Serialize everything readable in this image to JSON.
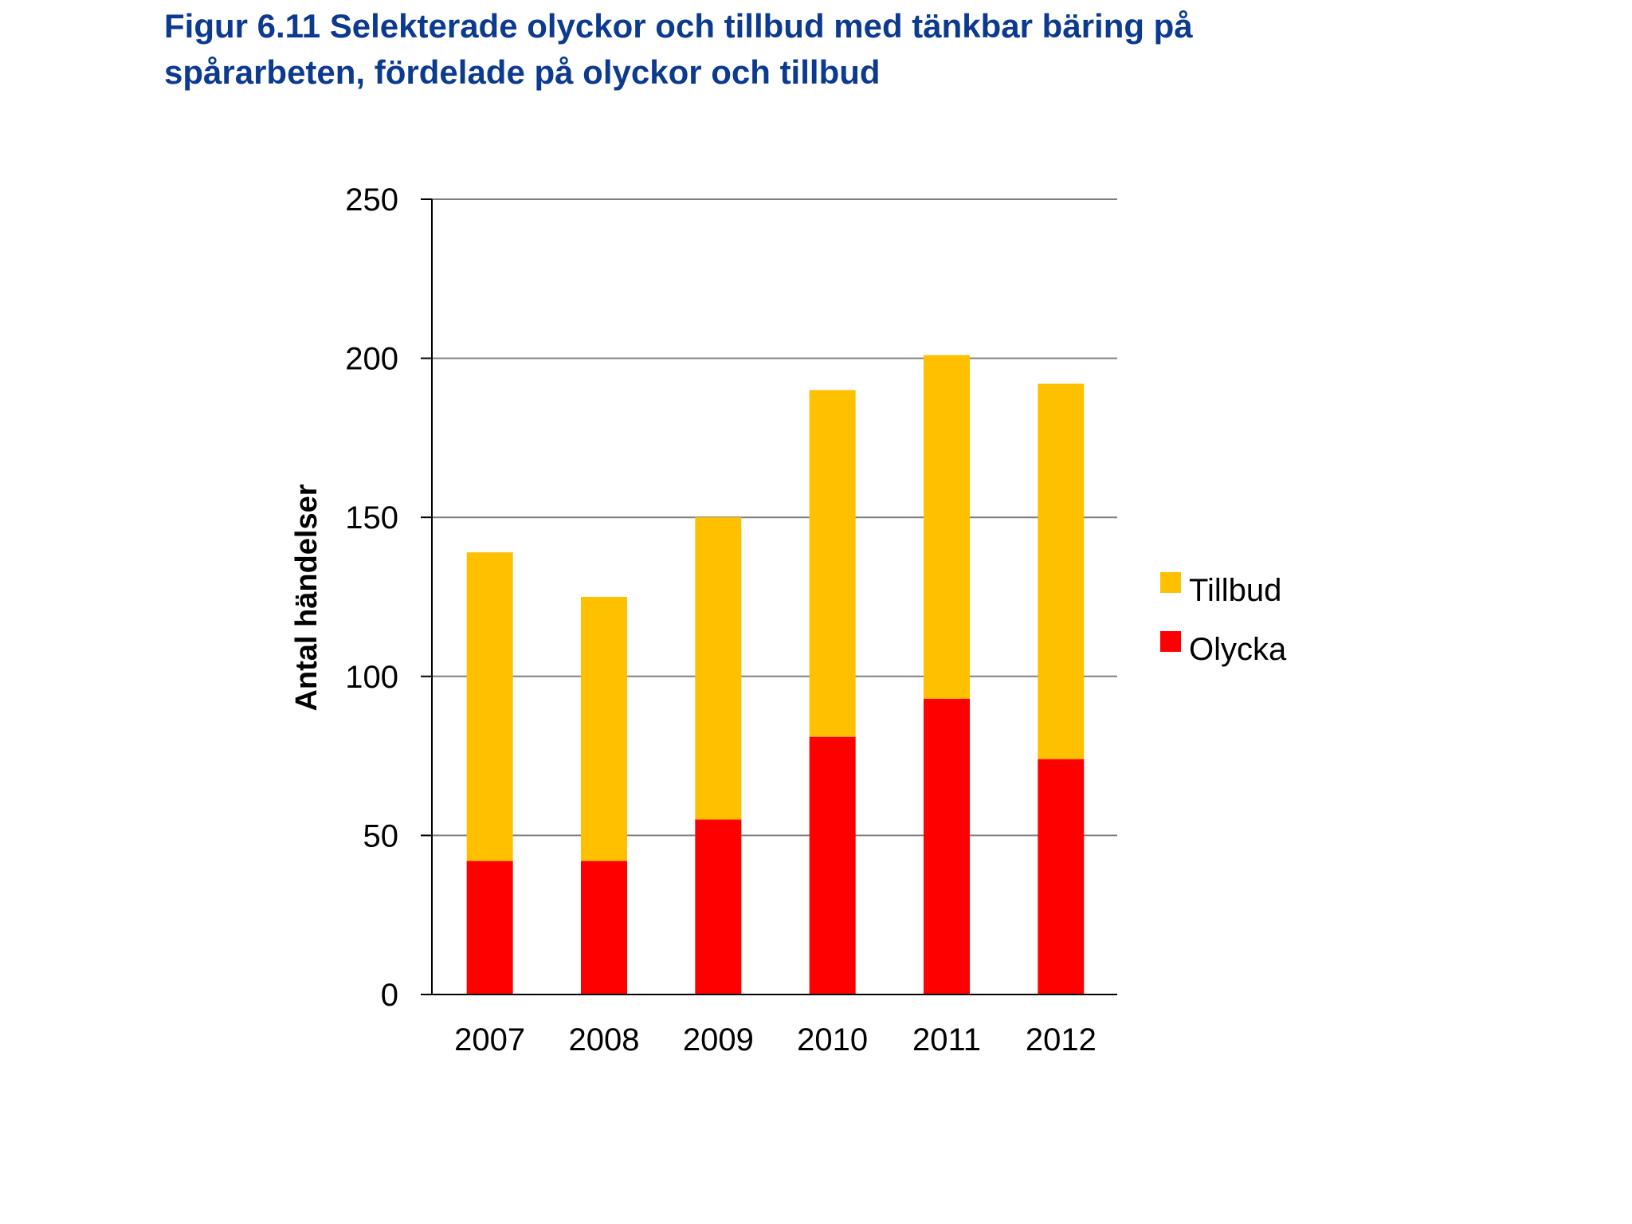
{
  "figure": {
    "title_line1": "Figur 6.11 Selekterade olyckor och tillbud med tänkbar bäring på",
    "title_line2": "spårarbeten, fördelade på olyckor och tillbud"
  },
  "colors": {
    "title": "#0b3a8f",
    "tillbud": "#ffc000",
    "olycka": "#ff0000",
    "gridline": "#808080",
    "axis": "#000000"
  },
  "chart_data": {
    "type": "bar",
    "stacked": true,
    "categories": [
      "2007",
      "2008",
      "2009",
      "2010",
      "2011",
      "2012"
    ],
    "series": [
      {
        "name": "Olycka",
        "color": "#ff0000",
        "values": [
          42,
          42,
          55,
          81,
          93,
          74
        ]
      },
      {
        "name": "Tillbud",
        "color": "#ffc000",
        "values": [
          97,
          83,
          95,
          109,
          108,
          118
        ]
      }
    ],
    "ylabel": "Antal händelser",
    "xlabel": "",
    "ylim": [
      0,
      250
    ],
    "yticks": [
      0,
      50,
      100,
      150,
      200,
      250
    ],
    "grid": true,
    "legend": {
      "position": "right",
      "entries": [
        "Tillbud",
        "Olycka"
      ]
    }
  }
}
